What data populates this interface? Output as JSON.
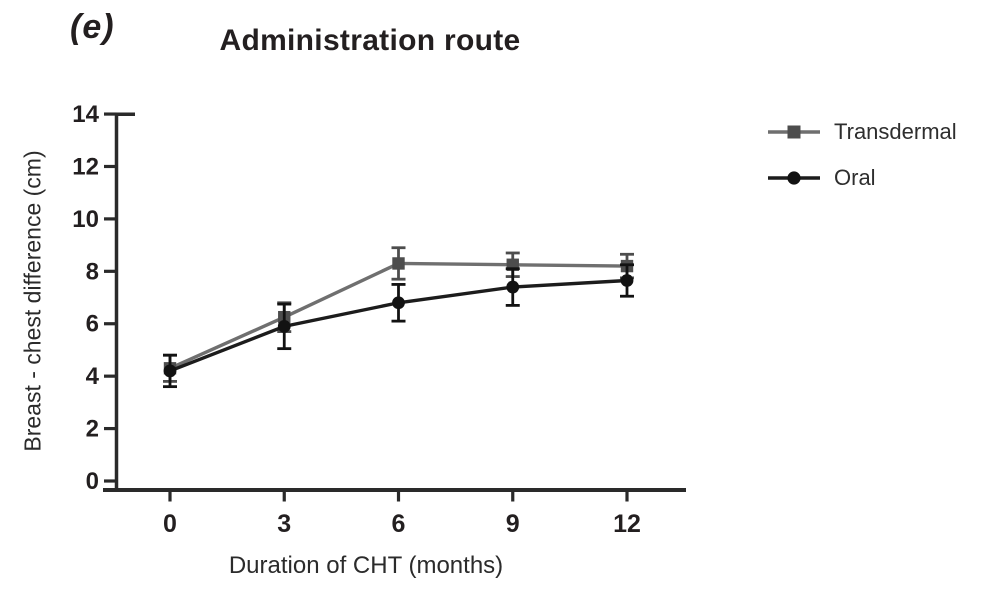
{
  "chart_data": {
    "type": "line",
    "panel_label": "(e)",
    "title": "Administration route",
    "xlabel": "Duration of CHT (months)",
    "ylabel": "Breast - chest difference (cm)",
    "x": [
      0,
      3,
      6,
      9,
      12
    ],
    "xticks": [
      "0",
      "3",
      "6",
      "9",
      "12"
    ],
    "yticks": [
      "0",
      "2",
      "4",
      "6",
      "8",
      "10",
      "12",
      "14"
    ],
    "ylim": [
      0,
      14
    ],
    "grid": false,
    "error_bars": true,
    "legend_position": "right-top",
    "series": [
      {
        "name": "Transdermal",
        "marker": "square",
        "line_color": "#6f6f6f",
        "marker_color": "#4d4d4d",
        "values": [
          4.3,
          6.25,
          8.3,
          8.25,
          8.2
        ],
        "errors": [
          0.5,
          0.55,
          0.6,
          0.45,
          0.45
        ]
      },
      {
        "name": "Oral",
        "marker": "circle",
        "line_color": "#1c1c1c",
        "marker_color": "#121212",
        "values": [
          4.2,
          5.9,
          6.8,
          7.4,
          7.65
        ],
        "errors": [
          0.6,
          0.85,
          0.7,
          0.7,
          0.6
        ]
      }
    ],
    "colors": {
      "axis": "#2a2a2a",
      "text": "#231f20"
    }
  }
}
